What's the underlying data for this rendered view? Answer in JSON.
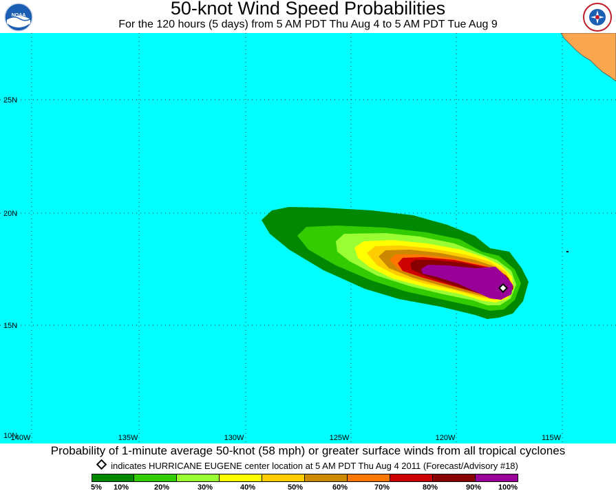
{
  "header": {
    "title": "50-knot Wind Speed Probabilities",
    "subtitle": "For the 120 hours (5 days) from 5 AM PDT Thu Aug 4 to 5 AM PDT Tue Aug 9",
    "logo_left": {
      "icon": "noaa-logo-icon",
      "text": "NOAA"
    },
    "logo_right": {
      "icon": "nws-logo-icon",
      "text": "NATIONAL WEATHER SERVICE"
    }
  },
  "map": {
    "ocean_color": "#00ffff",
    "land_color": "#f9a64f",
    "latitude_labels": [
      "25N",
      "20N",
      "15N",
      "10N"
    ],
    "longitude_labels": [
      "140W",
      "135W",
      "130W",
      "125W",
      "120W",
      "115W"
    ],
    "storm_marker": {
      "icon": "storm-center-diamond-icon",
      "lon": -117.8,
      "lat": 16.7
    }
  },
  "footer": {
    "caption": "Probability of 1-minute average 50-knot (58 mph) or greater surface winds from all tropical cyclones",
    "note": "indicates HURRICANE EUGENE center location at 5 AM PDT Thu Aug 4 2011 (Forecast/Advisory #18)"
  },
  "legend": {
    "labels": [
      "5%",
      "10%",
      "20%",
      "30%",
      "40%",
      "50%",
      "60%",
      "70%",
      "80%",
      "90%",
      "100%"
    ],
    "colors": [
      "#008800",
      "#33cc00",
      "#99ff33",
      "#ffff00",
      "#ffcc00",
      "#cc8800",
      "#ff7700",
      "#cc0000",
      "#880000",
      "#990099"
    ]
  }
}
